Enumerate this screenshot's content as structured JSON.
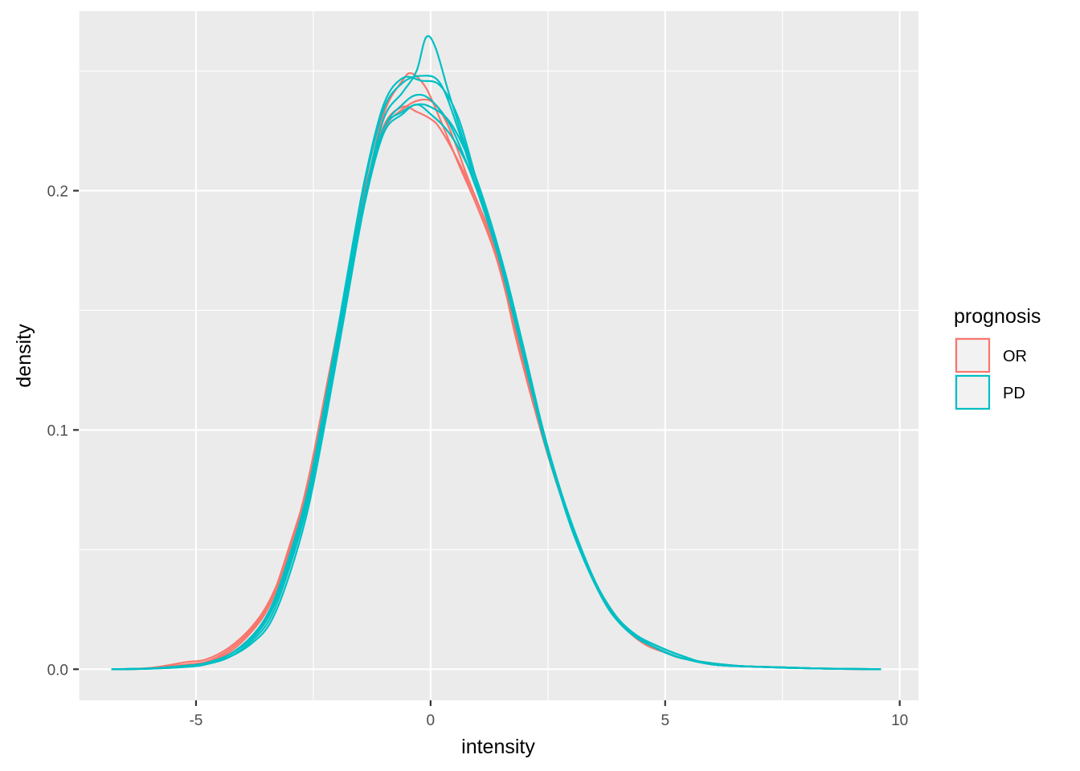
{
  "chart_data": {
    "type": "line",
    "subtype": "density",
    "title": "",
    "xlabel": "intensity",
    "ylabel": "density",
    "xlim": [
      -7.5,
      10.4
    ],
    "ylim": [
      -0.013,
      0.275
    ],
    "x_ticks": [
      -5,
      0,
      5,
      10
    ],
    "x_tick_labels": [
      "-5",
      "0",
      "5",
      "10"
    ],
    "y_ticks": [
      0.0,
      0.1,
      0.2
    ],
    "y_tick_labels": [
      "0.0",
      "0.1",
      "0.2"
    ],
    "grid": true,
    "panel_background": "#EBEBEB",
    "legend": {
      "title": "prognosis",
      "position": "right",
      "items": [
        {
          "label": "OR",
          "color": "#F8766D"
        },
        {
          "label": "PD",
          "color": "#00BFC4"
        }
      ]
    },
    "series": [
      {
        "group": "OR",
        "color": "#F8766D",
        "points": [
          [
            -6.8,
            0
          ],
          [
            -6,
            0.0005
          ],
          [
            -5.2,
            0.003
          ],
          [
            -4.8,
            0.004
          ],
          [
            -4.3,
            0.009
          ],
          [
            -3.8,
            0.018
          ],
          [
            -3.4,
            0.03
          ],
          [
            -3.0,
            0.05
          ],
          [
            -2.6,
            0.08
          ],
          [
            -2.2,
            0.12
          ],
          [
            -1.8,
            0.16
          ],
          [
            -1.4,
            0.2
          ],
          [
            -1.0,
            0.227
          ],
          [
            -0.6,
            0.235
          ],
          [
            -0.3,
            0.233
          ],
          [
            0,
            0.23
          ],
          [
            0.2,
            0.226
          ],
          [
            0.6,
            0.212
          ],
          [
            1.0,
            0.195
          ],
          [
            1.4,
            0.175
          ],
          [
            1.8,
            0.14
          ],
          [
            2.2,
            0.11
          ],
          [
            2.6,
            0.083
          ],
          [
            3.0,
            0.06
          ],
          [
            3.4,
            0.04
          ],
          [
            3.8,
            0.025
          ],
          [
            4.2,
            0.016
          ],
          [
            4.6,
            0.01
          ],
          [
            5.0,
            0.007
          ],
          [
            5.5,
            0.004
          ],
          [
            6.5,
            0.0015
          ],
          [
            7.5,
            0.0008
          ],
          [
            8.5,
            0.0002
          ],
          [
            9.6,
            0
          ]
        ]
      },
      {
        "group": "OR",
        "color": "#F8766D",
        "points": [
          [
            -6.8,
            0
          ],
          [
            -6,
            0.0004
          ],
          [
            -5.2,
            0.002
          ],
          [
            -4.8,
            0.003
          ],
          [
            -4.3,
            0.008
          ],
          [
            -3.8,
            0.017
          ],
          [
            -3.4,
            0.029
          ],
          [
            -3.0,
            0.052
          ],
          [
            -2.6,
            0.078
          ],
          [
            -2.2,
            0.115
          ],
          [
            -1.8,
            0.158
          ],
          [
            -1.4,
            0.198
          ],
          [
            -1.0,
            0.232
          ],
          [
            -0.6,
            0.246
          ],
          [
            -0.4,
            0.249
          ],
          [
            -0.1,
            0.243
          ],
          [
            0.2,
            0.23
          ],
          [
            0.6,
            0.211
          ],
          [
            1.0,
            0.193
          ],
          [
            1.4,
            0.172
          ],
          [
            1.8,
            0.142
          ],
          [
            2.2,
            0.112
          ],
          [
            2.6,
            0.085
          ],
          [
            3.0,
            0.06
          ],
          [
            3.4,
            0.041
          ],
          [
            3.8,
            0.026
          ],
          [
            4.2,
            0.017
          ],
          [
            4.6,
            0.011
          ],
          [
            5.0,
            0.007
          ],
          [
            5.5,
            0.004
          ],
          [
            6.5,
            0.0015
          ],
          [
            7.5,
            0.0008
          ],
          [
            8.5,
            0.0002
          ],
          [
            9.6,
            0
          ]
        ]
      },
      {
        "group": "OR",
        "color": "#F8766D",
        "points": [
          [
            -6.8,
            0
          ],
          [
            -6,
            0.0003
          ],
          [
            -5.2,
            0.002
          ],
          [
            -4.8,
            0.003
          ],
          [
            -4.3,
            0.007
          ],
          [
            -3.8,
            0.016
          ],
          [
            -3.4,
            0.028
          ],
          [
            -3.0,
            0.05
          ],
          [
            -2.6,
            0.077
          ],
          [
            -2.2,
            0.114
          ],
          [
            -1.8,
            0.157
          ],
          [
            -1.4,
            0.197
          ],
          [
            -1.0,
            0.225
          ],
          [
            -0.6,
            0.234
          ],
          [
            -0.2,
            0.238
          ],
          [
            0.1,
            0.236
          ],
          [
            0.4,
            0.226
          ],
          [
            0.8,
            0.205
          ],
          [
            1.2,
            0.185
          ],
          [
            1.6,
            0.16
          ],
          [
            2.0,
            0.128
          ],
          [
            2.4,
            0.097
          ],
          [
            2.8,
            0.072
          ],
          [
            3.2,
            0.05
          ],
          [
            3.6,
            0.033
          ],
          [
            4.0,
            0.021
          ],
          [
            4.4,
            0.013
          ],
          [
            4.8,
            0.009
          ],
          [
            5.3,
            0.005
          ],
          [
            6.0,
            0.002
          ],
          [
            7.0,
            0.001
          ],
          [
            8.0,
            0.0004
          ],
          [
            9.6,
            0
          ]
        ]
      },
      {
        "group": "PD",
        "color": "#00BFC4",
        "points": [
          [
            -6.8,
            0
          ],
          [
            -6,
            0.0003
          ],
          [
            -5.2,
            0.0015
          ],
          [
            -4.8,
            0.0025
          ],
          [
            -4.3,
            0.006
          ],
          [
            -3.8,
            0.013
          ],
          [
            -3.4,
            0.024
          ],
          [
            -3.0,
            0.045
          ],
          [
            -2.6,
            0.073
          ],
          [
            -2.2,
            0.112
          ],
          [
            -1.8,
            0.156
          ],
          [
            -1.4,
            0.198
          ],
          [
            -1.0,
            0.23
          ],
          [
            -0.6,
            0.241
          ],
          [
            -0.3,
            0.25
          ],
          [
            -0.1,
            0.264
          ],
          [
            0.1,
            0.26
          ],
          [
            0.4,
            0.24
          ],
          [
            0.8,
            0.215
          ],
          [
            1.2,
            0.19
          ],
          [
            1.6,
            0.163
          ],
          [
            2.0,
            0.13
          ],
          [
            2.4,
            0.098
          ],
          [
            2.8,
            0.072
          ],
          [
            3.2,
            0.05
          ],
          [
            3.6,
            0.033
          ],
          [
            4.0,
            0.021
          ],
          [
            4.4,
            0.014
          ],
          [
            4.8,
            0.01
          ],
          [
            5.3,
            0.006
          ],
          [
            6.0,
            0.002
          ],
          [
            7.0,
            0.001
          ],
          [
            8.0,
            0.0004
          ],
          [
            9.6,
            0
          ]
        ]
      },
      {
        "group": "PD",
        "color": "#00BFC4",
        "points": [
          [
            -6.8,
            0
          ],
          [
            -6,
            0.0003
          ],
          [
            -5.2,
            0.0015
          ],
          [
            -4.8,
            0.0025
          ],
          [
            -4.3,
            0.006
          ],
          [
            -3.8,
            0.014
          ],
          [
            -3.4,
            0.025
          ],
          [
            -3.0,
            0.047
          ],
          [
            -2.6,
            0.075
          ],
          [
            -2.2,
            0.115
          ],
          [
            -1.8,
            0.16
          ],
          [
            -1.4,
            0.203
          ],
          [
            -1.0,
            0.234
          ],
          [
            -0.6,
            0.245
          ],
          [
            -0.2,
            0.248
          ],
          [
            0.2,
            0.245
          ],
          [
            0.6,
            0.225
          ],
          [
            1.0,
            0.2
          ],
          [
            1.4,
            0.176
          ],
          [
            1.8,
            0.145
          ],
          [
            2.2,
            0.113
          ],
          [
            2.6,
            0.084
          ],
          [
            3.0,
            0.059
          ],
          [
            3.4,
            0.04
          ],
          [
            3.8,
            0.025
          ],
          [
            4.2,
            0.016
          ],
          [
            4.6,
            0.011
          ],
          [
            5.0,
            0.007
          ],
          [
            5.5,
            0.004
          ],
          [
            6.5,
            0.0015
          ],
          [
            7.5,
            0.0008
          ],
          [
            8.5,
            0.0002
          ],
          [
            9.6,
            0
          ]
        ]
      },
      {
        "group": "PD",
        "color": "#00BFC4",
        "points": [
          [
            -6.8,
            0
          ],
          [
            -6,
            0.0003
          ],
          [
            -5.2,
            0.0015
          ],
          [
            -4.8,
            0.0025
          ],
          [
            -4.3,
            0.006
          ],
          [
            -3.8,
            0.013
          ],
          [
            -3.4,
            0.024
          ],
          [
            -3.0,
            0.046
          ],
          [
            -2.6,
            0.074
          ],
          [
            -2.2,
            0.113
          ],
          [
            -1.8,
            0.157
          ],
          [
            -1.4,
            0.198
          ],
          [
            -1.0,
            0.226
          ],
          [
            -0.6,
            0.236
          ],
          [
            -0.3,
            0.24
          ],
          [
            0,
            0.238
          ],
          [
            0.4,
            0.228
          ],
          [
            0.8,
            0.21
          ],
          [
            1.2,
            0.188
          ],
          [
            1.6,
            0.162
          ],
          [
            2.0,
            0.13
          ],
          [
            2.4,
            0.098
          ],
          [
            2.8,
            0.072
          ],
          [
            3.2,
            0.05
          ],
          [
            3.6,
            0.033
          ],
          [
            4.0,
            0.021
          ],
          [
            4.4,
            0.014
          ],
          [
            4.8,
            0.01
          ],
          [
            5.3,
            0.006
          ],
          [
            6.0,
            0.002
          ],
          [
            7.0,
            0.001
          ],
          [
            8.0,
            0.0004
          ],
          [
            9.6,
            0
          ]
        ]
      },
      {
        "group": "PD",
        "color": "#00BFC4",
        "points": [
          [
            -6.8,
            0
          ],
          [
            -6,
            0.0002
          ],
          [
            -5.2,
            0.001
          ],
          [
            -4.8,
            0.002
          ],
          [
            -4.3,
            0.005
          ],
          [
            -3.8,
            0.012
          ],
          [
            -3.4,
            0.022
          ],
          [
            -3.0,
            0.043
          ],
          [
            -2.6,
            0.071
          ],
          [
            -2.2,
            0.11
          ],
          [
            -1.8,
            0.155
          ],
          [
            -1.4,
            0.198
          ],
          [
            -1.0,
            0.226
          ],
          [
            -0.6,
            0.233
          ],
          [
            -0.3,
            0.236
          ],
          [
            0,
            0.235
          ],
          [
            0.4,
            0.229
          ],
          [
            0.8,
            0.214
          ],
          [
            1.2,
            0.192
          ],
          [
            1.6,
            0.165
          ],
          [
            2.0,
            0.133
          ],
          [
            2.4,
            0.1
          ],
          [
            2.8,
            0.073
          ],
          [
            3.2,
            0.051
          ],
          [
            3.6,
            0.033
          ],
          [
            4.0,
            0.021
          ],
          [
            4.4,
            0.014
          ],
          [
            4.8,
            0.01
          ],
          [
            5.3,
            0.006
          ],
          [
            6.0,
            0.002
          ],
          [
            7.0,
            0.001
          ],
          [
            8.0,
            0.0004
          ],
          [
            9.6,
            0
          ]
        ]
      },
      {
        "group": "PD",
        "color": "#00BFC4",
        "points": [
          [
            -6.8,
            0
          ],
          [
            -6,
            0.0003
          ],
          [
            -5.2,
            0.0015
          ],
          [
            -4.8,
            0.0025
          ],
          [
            -4.3,
            0.006
          ],
          [
            -3.8,
            0.014
          ],
          [
            -3.4,
            0.026
          ],
          [
            -3.0,
            0.048
          ],
          [
            -2.6,
            0.076
          ],
          [
            -2.2,
            0.117
          ],
          [
            -1.8,
            0.162
          ],
          [
            -1.4,
            0.205
          ],
          [
            -1.0,
            0.236
          ],
          [
            -0.6,
            0.247
          ],
          [
            -0.2,
            0.246
          ],
          [
            0.2,
            0.244
          ],
          [
            0.6,
            0.23
          ],
          [
            1.0,
            0.203
          ],
          [
            1.4,
            0.178
          ],
          [
            1.8,
            0.147
          ],
          [
            2.2,
            0.114
          ],
          [
            2.6,
            0.085
          ],
          [
            3.0,
            0.06
          ],
          [
            3.4,
            0.04
          ],
          [
            3.8,
            0.025
          ],
          [
            4.2,
            0.016
          ],
          [
            4.6,
            0.011
          ],
          [
            5.0,
            0.007
          ],
          [
            5.5,
            0.004
          ],
          [
            6.5,
            0.0015
          ],
          [
            7.5,
            0.0008
          ],
          [
            8.5,
            0.0002
          ],
          [
            9.6,
            0
          ]
        ]
      },
      {
        "group": "PD",
        "color": "#00BFC4",
        "points": [
          [
            -6.8,
            0
          ],
          [
            -6,
            0.0002
          ],
          [
            -5.2,
            0.001
          ],
          [
            -4.8,
            0.002
          ],
          [
            -4.3,
            0.005
          ],
          [
            -3.8,
            0.011
          ],
          [
            -3.4,
            0.02
          ],
          [
            -3.0,
            0.04
          ],
          [
            -2.6,
            0.068
          ],
          [
            -2.2,
            0.108
          ],
          [
            -1.8,
            0.152
          ],
          [
            -1.4,
            0.195
          ],
          [
            -1.0,
            0.224
          ],
          [
            -0.6,
            0.232
          ],
          [
            -0.3,
            0.236
          ],
          [
            0,
            0.232
          ],
          [
            0.4,
            0.224
          ],
          [
            0.8,
            0.21
          ],
          [
            1.2,
            0.19
          ],
          [
            1.6,
            0.162
          ],
          [
            2.0,
            0.13
          ],
          [
            2.4,
            0.097
          ],
          [
            2.8,
            0.071
          ],
          [
            3.2,
            0.049
          ],
          [
            3.6,
            0.032
          ],
          [
            4.0,
            0.02
          ],
          [
            4.4,
            0.013
          ],
          [
            4.8,
            0.009
          ],
          [
            5.3,
            0.005
          ],
          [
            6.0,
            0.002
          ],
          [
            7.0,
            0.001
          ],
          [
            8.0,
            0.0004
          ],
          [
            9.6,
            0
          ]
        ]
      }
    ]
  }
}
